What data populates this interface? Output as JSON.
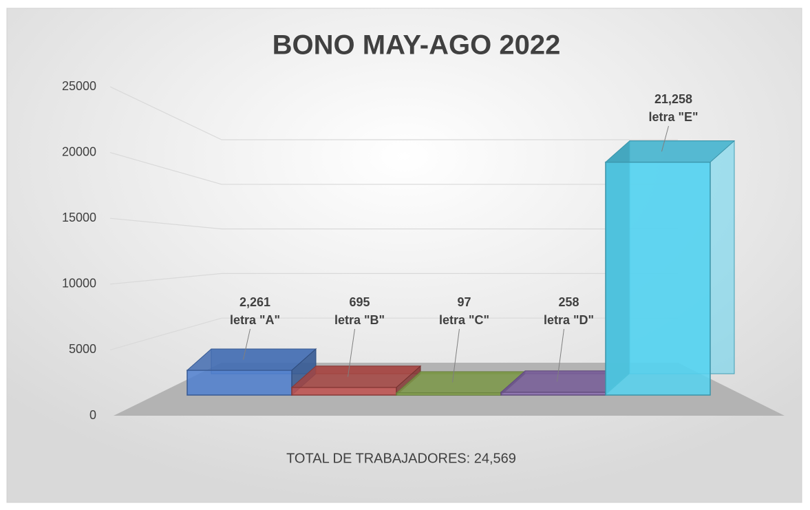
{
  "chart_data": {
    "type": "bar3d",
    "title": "BONO  MAY-AGO 2022",
    "categories": [
      "letra \"A\"",
      "letra \"B\"",
      "letra \"C\"",
      "letra \"D\"",
      "letra \"E\""
    ],
    "values": [
      2261,
      695,
      97,
      258,
      21258
    ],
    "value_labels": [
      "2,261",
      "695",
      "97",
      "258",
      "21,258"
    ],
    "colors": [
      "#4f7fcf",
      "#c0504d",
      "#8fb052",
      "#8a6cb0",
      "#55d2f0"
    ],
    "ylim": [
      0,
      25000
    ],
    "yticks": [
      0,
      5000,
      10000,
      15000,
      20000,
      25000
    ],
    "grid": true,
    "xlabel": "TOTAL DE TRABAJADORES: 24,569"
  }
}
